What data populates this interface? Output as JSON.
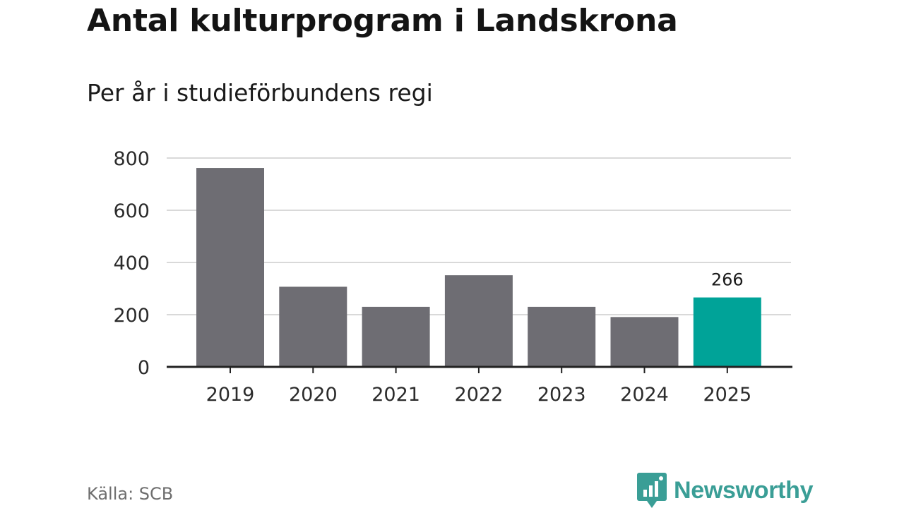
{
  "title": "Antal kulturprogram i Landskrona",
  "subtitle": "Per år i studieförbundens regi",
  "source": "Källa: SCB",
  "brand": "Newsworthy",
  "colors": {
    "bar": "#6e6d73",
    "highlight": "#00a398",
    "grid": "#d9d9d9",
    "axis": "#222222",
    "brand": "#3a9e96"
  },
  "chart_data": {
    "type": "bar",
    "categories": [
      "2019",
      "2020",
      "2021",
      "2022",
      "2023",
      "2024",
      "2025"
    ],
    "values": [
      762,
      307,
      230,
      351,
      230,
      191,
      266
    ],
    "highlight_index": 6,
    "data_labels": [
      {
        "index": 6,
        "text": "266"
      }
    ],
    "yticks": [
      0,
      200,
      400,
      600,
      800
    ],
    "ylim": [
      0,
      800
    ],
    "grid": true,
    "legend": "none"
  }
}
